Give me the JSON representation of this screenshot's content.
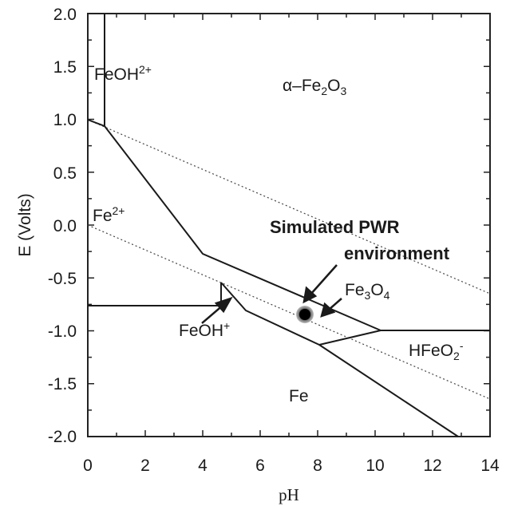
{
  "chart_data": {
    "type": "diagram",
    "xlabel": "pH",
    "ylabel": "E (Volts)",
    "xlim": [
      0,
      14
    ],
    "ylim": [
      -2.0,
      2.0
    ],
    "x_ticks": [
      "0",
      "2",
      "4",
      "6",
      "8",
      "10",
      "12",
      "14"
    ],
    "y_ticks": [
      "2.0",
      "1.5",
      "1.0",
      "0.5",
      "0.0",
      "-0.5",
      "-1.0",
      "-1.5",
      "-2.0"
    ],
    "regions": {
      "feoh2": {
        "label": "FeOH",
        "sup": "2+"
      },
      "fe2o3": {
        "label_prefix": "α–Fe",
        "sub1": "2",
        "mid": "O",
        "sub2": "3"
      },
      "fe2": {
        "label": "Fe",
        "sup": "2+"
      },
      "fe3o4": {
        "label": "Fe",
        "sub1": "3",
        "mid": "O",
        "sub2": "4"
      },
      "feoh": {
        "label": "FeOH",
        "sup": "+"
      },
      "hfeo2": {
        "label": "HFeO",
        "sub": "2",
        "sup": "-"
      },
      "fe": {
        "label": "Fe"
      }
    },
    "annotation": {
      "line1": "Simulated PWR",
      "line2": "environment"
    },
    "point": {
      "ph": 7.5,
      "e": -0.85
    }
  }
}
